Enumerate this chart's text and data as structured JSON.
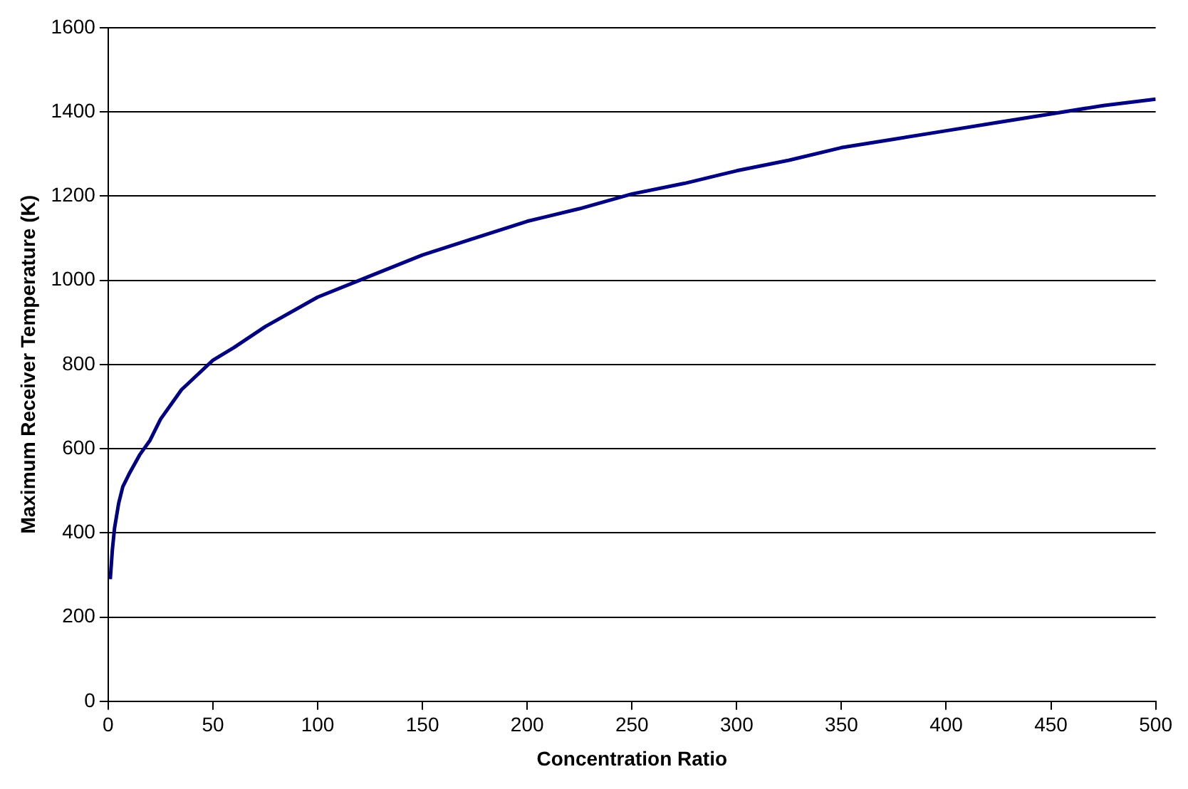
{
  "chart_data": {
    "type": "line",
    "xlabel": "Concentration Ratio",
    "ylabel": "Maximum Receiver Temperature (K)",
    "series": [
      {
        "color": "#000080",
        "x": [
          1,
          2,
          3,
          5,
          7,
          10,
          15,
          20,
          25,
          35,
          50,
          60,
          75,
          100,
          125,
          150,
          175,
          200,
          225,
          250,
          275,
          300,
          325,
          350,
          375,
          400,
          425,
          450,
          475,
          500
        ],
        "values": [
          290,
          360,
          410,
          470,
          510,
          540,
          585,
          620,
          670,
          740,
          810,
          840,
          890,
          960,
          1010,
          1060,
          1100,
          1140,
          1170,
          1205,
          1230,
          1260,
          1285,
          1315,
          1335,
          1355,
          1375,
          1395,
          1415,
          1430
        ]
      }
    ],
    "xlim": [
      0,
      500
    ],
    "xticks": [
      0,
      50,
      100,
      150,
      200,
      250,
      300,
      350,
      400,
      450,
      500
    ],
    "ylim": [
      0,
      1600
    ],
    "yticks": [
      0,
      200,
      400,
      600,
      800,
      1000,
      1200,
      1400,
      1600
    ],
    "grid": "y",
    "legend": false,
    "marker": "none",
    "line_style": "solid"
  }
}
